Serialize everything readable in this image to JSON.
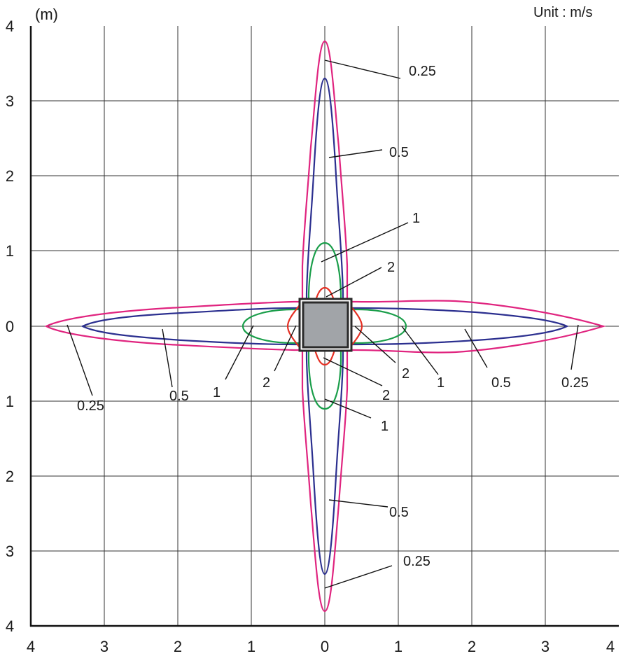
{
  "header": {
    "unit_axis": "(m)",
    "unit_note": "Unit : m/s"
  },
  "axes": {
    "left_ticks": [
      "4",
      "3",
      "2",
      "1",
      "0",
      "1",
      "2",
      "3",
      "4"
    ],
    "bottom_ticks": [
      "4",
      "3",
      "2",
      "1",
      "0",
      "1",
      "2",
      "3",
      "4"
    ]
  },
  "contours": {
    "colors": {
      "v025": "#e0247f",
      "v05": "#2b2f8f",
      "v1": "#1a9e4a",
      "v2": "#e53024"
    },
    "labels": {
      "top_025": "0.25",
      "top_05": "0.5",
      "top_1": "1",
      "top_2": "2",
      "right_2": "2",
      "right_1": "1",
      "right_05": "0.5",
      "right_025": "0.25",
      "bottom_2": "2",
      "bottom_1": "1",
      "bottom_05": "0.5",
      "bottom_025": "0.25",
      "left_2": "2",
      "left_1": "1",
      "left_05": "0.5",
      "left_025": "0.25"
    }
  }
}
